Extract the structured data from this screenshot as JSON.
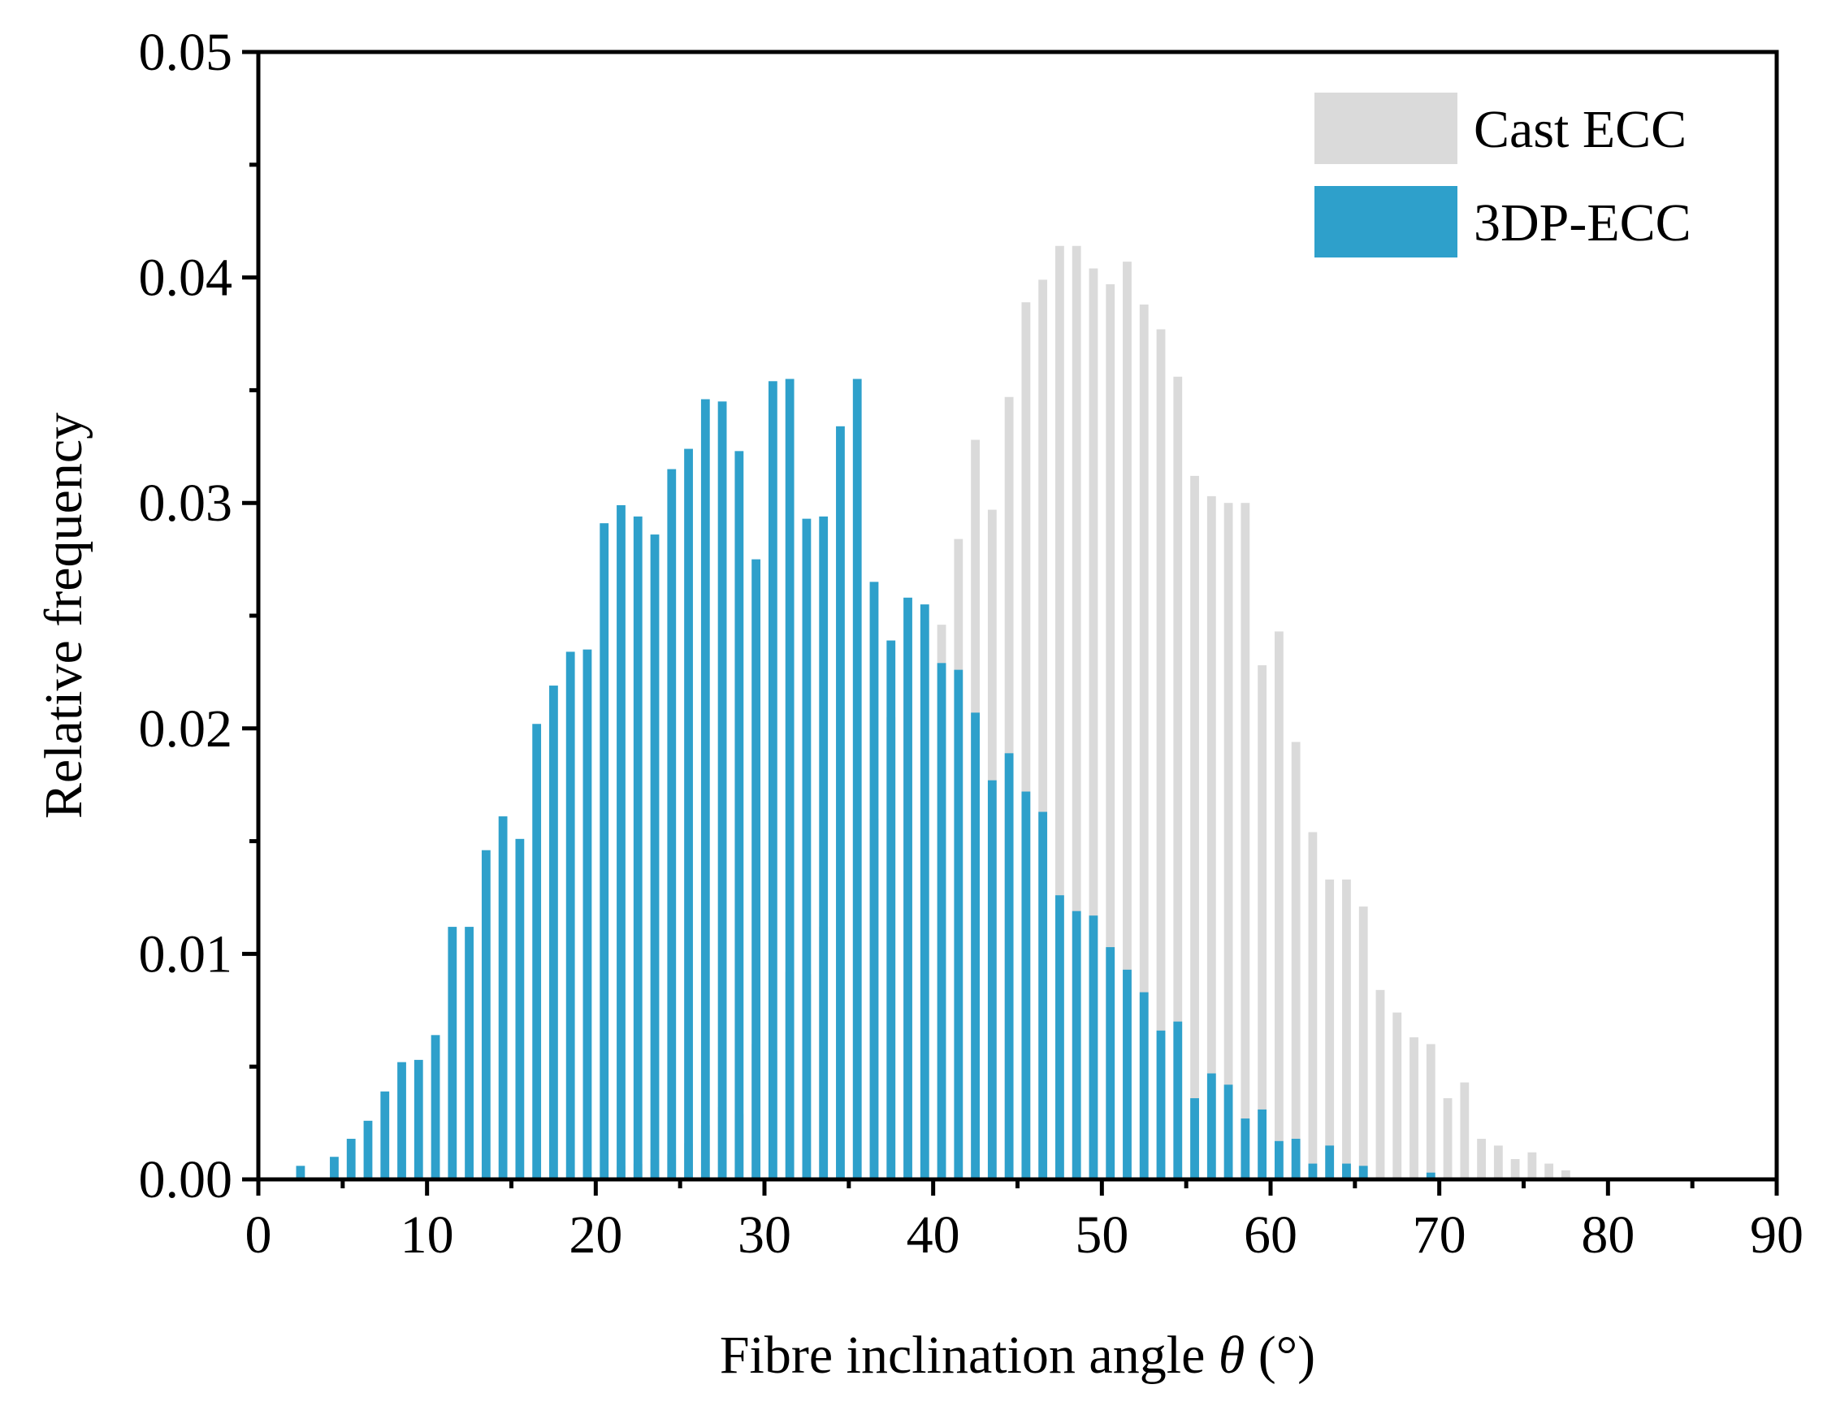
{
  "chart_data": {
    "type": "bar",
    "xlabel": "Fibre inclination angle θ (°)",
    "xlabel_main": "Fibre inclination angle ",
    "xlabel_symbol": "θ",
    "xlabel_unit": " (°)",
    "ylabel": "Relative frequency",
    "xlim": [
      0,
      90
    ],
    "ylim": [
      0,
      0.05
    ],
    "xticks": [
      "0",
      "10",
      "20",
      "30",
      "40",
      "50",
      "60",
      "70",
      "80",
      "90"
    ],
    "yticks": [
      "0.00",
      "0.01",
      "0.02",
      "0.03",
      "0.04",
      "0.05"
    ],
    "bin_width": 1,
    "legend_position": "top-right",
    "series": [
      {
        "name": "Cast ECC",
        "color": "#d3d3d3",
        "opacity": 0.85,
        "x": [
          18,
          19,
          20,
          21,
          22,
          23,
          24,
          25,
          26,
          27,
          28,
          29,
          30,
          31,
          32,
          33,
          34,
          35,
          36,
          37,
          38,
          39,
          40,
          41,
          42,
          43,
          44,
          45,
          46,
          47,
          48,
          49,
          50,
          51,
          52,
          53,
          54,
          55,
          56,
          57,
          58,
          59,
          60,
          61,
          62,
          63,
          64,
          65,
          66,
          67,
          68,
          69,
          70,
          71,
          72,
          73,
          74,
          75,
          76,
          77
        ],
        "values": [
          0.0003,
          0.0003,
          0.0004,
          0.0006,
          0.0007,
          0.0009,
          0.0011,
          0.0016,
          0.0024,
          0.0032,
          0.0029,
          0.006,
          0.0057,
          0.0092,
          0.0091,
          0.0112,
          0.0137,
          0.0164,
          0.016,
          0.0205,
          0.0217,
          0.0248,
          0.0246,
          0.0284,
          0.0328,
          0.0297,
          0.0347,
          0.0389,
          0.0399,
          0.0414,
          0.0414,
          0.0404,
          0.0397,
          0.0407,
          0.0388,
          0.0377,
          0.0356,
          0.0312,
          0.0303,
          0.03,
          0.03,
          0.0228,
          0.0243,
          0.0194,
          0.0154,
          0.0133,
          0.0133,
          0.0121,
          0.0084,
          0.0074,
          0.0063,
          0.006,
          0.0036,
          0.0043,
          0.0018,
          0.0015,
          0.0009,
          0.0012,
          0.0007,
          0.0004
        ]
      },
      {
        "name": "3DP-ECC",
        "color": "#2ea0cb",
        "opacity": 1,
        "x": [
          2,
          4,
          5,
          6,
          7,
          8,
          9,
          10,
          11,
          12,
          13,
          14,
          15,
          16,
          17,
          18,
          19,
          20,
          21,
          22,
          23,
          24,
          25,
          26,
          27,
          28,
          29,
          30,
          31,
          32,
          33,
          34,
          35,
          36,
          37,
          38,
          39,
          40,
          41,
          42,
          43,
          44,
          45,
          46,
          47,
          48,
          49,
          50,
          51,
          52,
          53,
          54,
          55,
          56,
          57,
          58,
          59,
          60,
          61,
          62,
          63,
          64,
          65,
          69
        ],
        "values": [
          0.0006,
          0.001,
          0.0018,
          0.0026,
          0.0039,
          0.0052,
          0.0053,
          0.0064,
          0.0112,
          0.0112,
          0.0146,
          0.0161,
          0.0151,
          0.0202,
          0.0219,
          0.0234,
          0.0235,
          0.0291,
          0.0299,
          0.0294,
          0.0286,
          0.0315,
          0.0324,
          0.0346,
          0.0345,
          0.0323,
          0.0275,
          0.0354,
          0.0355,
          0.0293,
          0.0294,
          0.0334,
          0.0355,
          0.0265,
          0.0239,
          0.0258,
          0.0255,
          0.0229,
          0.0226,
          0.0207,
          0.0177,
          0.0189,
          0.0172,
          0.0163,
          0.0126,
          0.0119,
          0.0117,
          0.0103,
          0.0093,
          0.0083,
          0.0066,
          0.007,
          0.0036,
          0.0047,
          0.0042,
          0.0027,
          0.0031,
          0.0017,
          0.0018,
          0.0007,
          0.0015,
          0.0007,
          0.0006,
          0.0003
        ]
      }
    ]
  }
}
